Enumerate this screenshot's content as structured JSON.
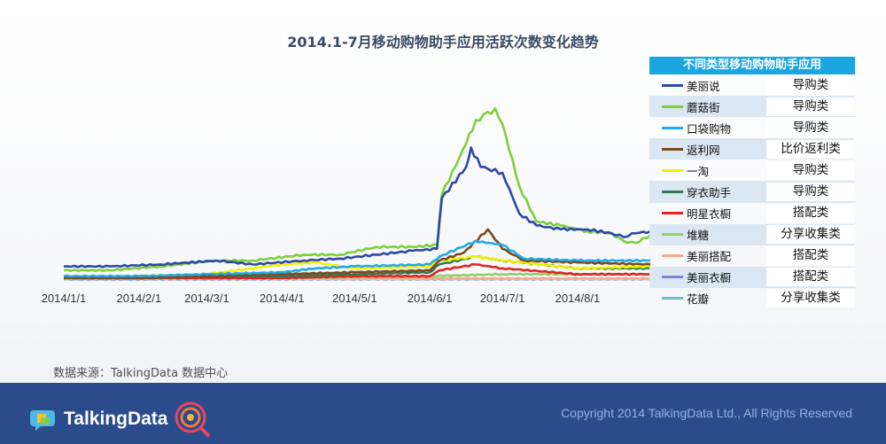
{
  "page": {
    "title": "2014.1-7月移动购物助手应用活跃次数变化趋势",
    "source": "数据来源：TalkingData 数据中心",
    "brand": "TalkingData",
    "copyright": "Copyright 2014 TalkingData Ltd., All Rights Reserved"
  },
  "legend": {
    "header": "不同类型移动购物助手应用"
  },
  "chart_data": {
    "type": "line",
    "title": "2014.1-7月移动购物助手应用活跃次数变化趋势",
    "x_ticks": [
      "2014/1/1",
      "2014/2/1",
      "2014/3/1",
      "2014/4/1",
      "2014/5/1",
      "2014/6/1",
      "2014/7/1",
      "2014/8/1"
    ],
    "x_range": [
      "2014/1/1",
      "2014/8/31"
    ],
    "y_axis": "unlabeled (relative scale 0-100)",
    "ylim": [
      0,
      100
    ],
    "grid": false,
    "legend_position": "right",
    "series": [
      {
        "name": "美丽说",
        "category": "导购类",
        "color": "#2e48a8",
        "points": [
          [
            "2014/1/1",
            7
          ],
          [
            "2014/1/20",
            7
          ],
          [
            "2014/2/10",
            8
          ],
          [
            "2014/3/5",
            10
          ],
          [
            "2014/3/20",
            8
          ],
          [
            "2014/4/10",
            10
          ],
          [
            "2014/4/25",
            11
          ],
          [
            "2014/5/10",
            13
          ],
          [
            "2014/5/25",
            15
          ],
          [
            "2014/6/4",
            16
          ],
          [
            "2014/6/6",
            42
          ],
          [
            "2014/6/16",
            58
          ],
          [
            "2014/6/18",
            68
          ],
          [
            "2014/6/22",
            58
          ],
          [
            "2014/7/1",
            55
          ],
          [
            "2014/7/8",
            34
          ],
          [
            "2014/7/15",
            28
          ],
          [
            "2014/7/25",
            26
          ],
          [
            "2014/8/5",
            26
          ],
          [
            "2014/8/15",
            24
          ],
          [
            "2014/8/20",
            22
          ],
          [
            "2014/8/25",
            24
          ],
          [
            "2014/8/31",
            25
          ]
        ]
      },
      {
        "name": "蘑菇街",
        "category": "导购类",
        "color": "#7ecf3a",
        "points": [
          [
            "2014/1/1",
            5
          ],
          [
            "2014/1/20",
            5
          ],
          [
            "2014/2/10",
            7
          ],
          [
            "2014/3/5",
            10
          ],
          [
            "2014/3/20",
            10
          ],
          [
            "2014/4/10",
            13
          ],
          [
            "2014/4/25",
            13
          ],
          [
            "2014/5/10",
            17
          ],
          [
            "2014/5/25",
            17
          ],
          [
            "2014/6/4",
            18
          ],
          [
            "2014/6/6",
            44
          ],
          [
            "2014/6/16",
            70
          ],
          [
            "2014/6/20",
            82
          ],
          [
            "2014/6/28",
            88
          ],
          [
            "2014/7/1",
            80
          ],
          [
            "2014/7/8",
            48
          ],
          [
            "2014/7/15",
            30
          ],
          [
            "2014/7/25",
            28
          ],
          [
            "2014/8/5",
            25
          ],
          [
            "2014/8/15",
            24
          ],
          [
            "2014/8/20",
            20
          ],
          [
            "2014/8/25",
            19
          ],
          [
            "2014/8/31",
            23
          ]
        ]
      },
      {
        "name": "口袋购物",
        "category": "导购类",
        "color": "#22a9e6",
        "points": [
          [
            "2014/1/1",
            2
          ],
          [
            "2014/2/1",
            2
          ],
          [
            "2014/3/1",
            3
          ],
          [
            "2014/4/1",
            4
          ],
          [
            "2014/4/15",
            6
          ],
          [
            "2014/5/1",
            7
          ],
          [
            "2014/6/1",
            8
          ],
          [
            "2014/6/5",
            12
          ],
          [
            "2014/6/20",
            20
          ],
          [
            "2014/7/1",
            18
          ],
          [
            "2014/7/10",
            11
          ],
          [
            "2014/8/1",
            10
          ],
          [
            "2014/8/31",
            10
          ]
        ]
      },
      {
        "name": "返利网",
        "category": "比价返利类",
        "color": "#7b4a1e",
        "points": [
          [
            "2014/1/1",
            1
          ],
          [
            "2014/2/1",
            1
          ],
          [
            "2014/3/1",
            2
          ],
          [
            "2014/4/1",
            3
          ],
          [
            "2014/5/1",
            4
          ],
          [
            "2014/6/1",
            5
          ],
          [
            "2014/6/5",
            10
          ],
          [
            "2014/6/15",
            14
          ],
          [
            "2014/6/25",
            26
          ],
          [
            "2014/7/1",
            16
          ],
          [
            "2014/7/10",
            10
          ],
          [
            "2014/8/1",
            9
          ],
          [
            "2014/8/31",
            8
          ]
        ]
      },
      {
        "name": "一淘",
        "category": "导购类",
        "color": "#f2f200",
        "points": [
          [
            "2014/1/1",
            1
          ],
          [
            "2014/2/1",
            2
          ],
          [
            "2014/3/1",
            3
          ],
          [
            "2014/4/1",
            8
          ],
          [
            "2014/4/15",
            9
          ],
          [
            "2014/5/1",
            6
          ],
          [
            "2014/6/1",
            7
          ],
          [
            "2014/6/5",
            10
          ],
          [
            "2014/6/20",
            12
          ],
          [
            "2014/7/1",
            10
          ],
          [
            "2014/8/1",
            6
          ],
          [
            "2014/8/31",
            7
          ]
        ]
      },
      {
        "name": "穿衣助手",
        "category": "导购类",
        "color": "#2e7d54",
        "points": [
          [
            "2014/1/1",
            1
          ],
          [
            "2014/2/1",
            1
          ],
          [
            "2014/3/1",
            2
          ],
          [
            "2014/4/1",
            2
          ],
          [
            "2014/5/1",
            3
          ],
          [
            "2014/6/1",
            4
          ],
          [
            "2014/6/5",
            8
          ],
          [
            "2014/6/20",
            12
          ],
          [
            "2014/7/1",
            10
          ],
          [
            "2014/8/1",
            6
          ],
          [
            "2014/8/31",
            6
          ]
        ]
      },
      {
        "name": "明星衣橱",
        "category": "搭配类",
        "color": "#e52222",
        "points": [
          [
            "2014/1/1",
            1
          ],
          [
            "2014/2/1",
            1
          ],
          [
            "2014/3/1",
            1
          ],
          [
            "2014/4/1",
            1
          ],
          [
            "2014/5/1",
            2
          ],
          [
            "2014/6/1",
            2
          ],
          [
            "2014/6/5",
            5
          ],
          [
            "2014/6/20",
            8
          ],
          [
            "2014/7/1",
            6
          ],
          [
            "2014/8/1",
            3
          ],
          [
            "2014/8/31",
            3
          ]
        ]
      },
      {
        "name": "堆糖",
        "category": "分享收集类",
        "color": "#8fd06a",
        "points": [
          [
            "2014/1/1",
            1
          ],
          [
            "2014/4/1",
            1
          ],
          [
            "2014/6/1",
            2
          ],
          [
            "2014/7/1",
            3
          ],
          [
            "2014/8/31",
            3
          ]
        ]
      },
      {
        "name": "美丽搭配",
        "category": "搭配类",
        "color": "#f4a98a",
        "points": [
          [
            "2014/1/1",
            0.5
          ],
          [
            "2014/6/1",
            0.8
          ],
          [
            "2014/8/31",
            0.8
          ]
        ]
      },
      {
        "name": "美丽衣橱",
        "category": "搭配类",
        "color": "#8a7fd6",
        "points": [
          [
            "2014/1/1",
            0.3
          ],
          [
            "2014/8/31",
            0.4
          ]
        ]
      },
      {
        "name": "花瓣",
        "category": "分享收集类",
        "color": "#6fbfd0",
        "points": [
          [
            "2014/1/1",
            0.2
          ],
          [
            "2014/8/31",
            0.3
          ]
        ]
      }
    ]
  }
}
